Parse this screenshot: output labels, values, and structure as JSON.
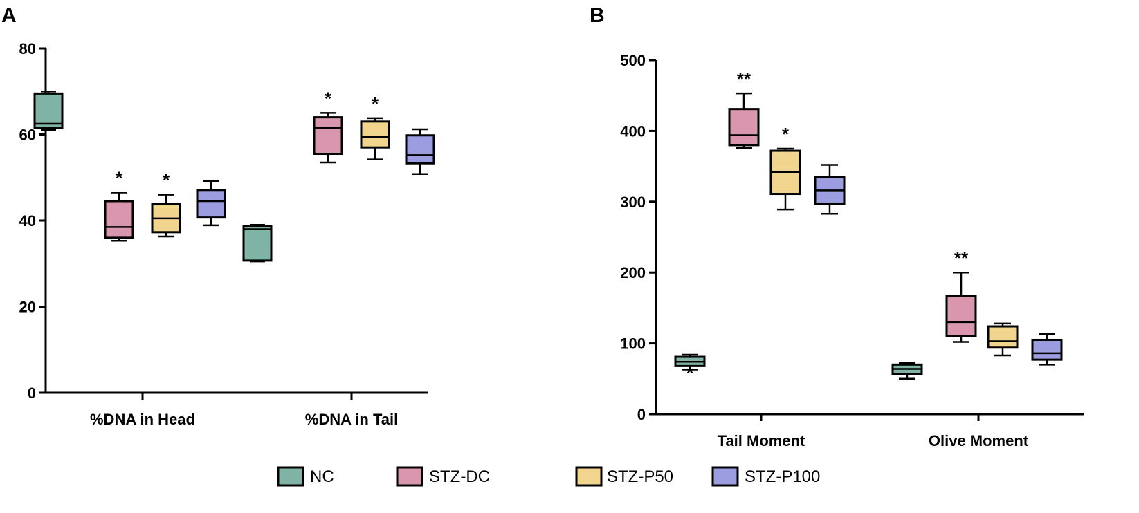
{
  "colors": {
    "NC": "#7fb3a5",
    "STZ-DC": "#d897ae",
    "STZ-P50": "#f1d58e",
    "STZ-P100": "#9b9de0",
    "line": "#000000"
  },
  "legend": [
    "NC",
    "STZ-DC",
    "STZ-P50",
    "STZ-P100"
  ],
  "chart_data": [
    {
      "type": "box",
      "panel": "A",
      "title": "",
      "xlabel": "",
      "ylabel": "",
      "ylim": [
        0,
        80
      ],
      "yticks": [
        "0",
        "20",
        "40",
        "60",
        "80"
      ],
      "categories": [
        "%DNA in Head",
        "%DNA in Tail"
      ],
      "series": [
        {
          "name": "NC",
          "boxes": [
            {
              "min": 61,
              "q1": 61.5,
              "median": 62.5,
              "q3": 69.5,
              "max": 70,
              "star": ""
            },
            {
              "min": 30.5,
              "q1": 30.7,
              "median": 38,
              "q3": 38.7,
              "max": 39,
              "star": ""
            }
          ]
        },
        {
          "name": "STZ-DC",
          "boxes": [
            {
              "min": 35.3,
              "q1": 36,
              "median": 38.5,
              "q3": 44.5,
              "max": 46.5,
              "star": "*"
            },
            {
              "min": 53.5,
              "q1": 55.5,
              "median": 61.5,
              "q3": 64,
              "max": 65,
              "star": "*"
            }
          ]
        },
        {
          "name": "STZ-P50",
          "boxes": [
            {
              "min": 36.3,
              "q1": 37.3,
              "median": 40.5,
              "q3": 43.8,
              "max": 46,
              "star": "*"
            },
            {
              "min": 54.2,
              "q1": 57,
              "median": 59.4,
              "q3": 63,
              "max": 63.8,
              "star": "*"
            }
          ]
        },
        {
          "name": "STZ-P100",
          "boxes": [
            {
              "min": 38.9,
              "q1": 40.7,
              "median": 44.5,
              "q3": 47.1,
              "max": 49.2,
              "star": ""
            },
            {
              "min": 50.8,
              "q1": 53.3,
              "median": 55.2,
              "q3": 59.8,
              "max": 61.2,
              "star": ""
            }
          ]
        }
      ]
    },
    {
      "type": "box",
      "panel": "B",
      "title": "",
      "xlabel": "",
      "ylabel": "",
      "ylim": [
        0,
        500
      ],
      "yticks": [
        "0",
        "100",
        "200",
        "300",
        "400",
        "500"
      ],
      "categories": [
        "Tail Moment",
        "Olive Moment"
      ],
      "series": [
        {
          "name": "NC",
          "boxes": [
            {
              "min": 63,
              "q1": 68,
              "median": 74,
              "q3": 81,
              "max": 84,
              "star": "*"
            },
            {
              "min": 50,
              "q1": 57,
              "median": 64,
              "q3": 70,
              "max": 72,
              "star": ""
            }
          ]
        },
        {
          "name": "STZ-DC",
          "boxes": [
            {
              "min": 376,
              "q1": 380,
              "median": 394,
              "q3": 431,
              "max": 453,
              "star": "**"
            },
            {
              "min": 102,
              "q1": 110,
              "median": 130,
              "q3": 167,
              "max": 200,
              "star": "**"
            }
          ]
        },
        {
          "name": "STZ-P50",
          "boxes": [
            {
              "min": 289,
              "q1": 311,
              "median": 342,
              "q3": 372,
              "max": 375,
              "star": "*"
            },
            {
              "min": 83,
              "q1": 94,
              "median": 103,
              "q3": 124,
              "max": 128,
              "star": ""
            }
          ]
        },
        {
          "name": "STZ-P100",
          "boxes": [
            {
              "min": 283,
              "q1": 297,
              "median": 316,
              "q3": 335,
              "max": 352,
              "star": ""
            },
            {
              "min": 70,
              "q1": 77,
              "median": 86,
              "q3": 105,
              "max": 113,
              "star": ""
            }
          ]
        }
      ]
    }
  ]
}
